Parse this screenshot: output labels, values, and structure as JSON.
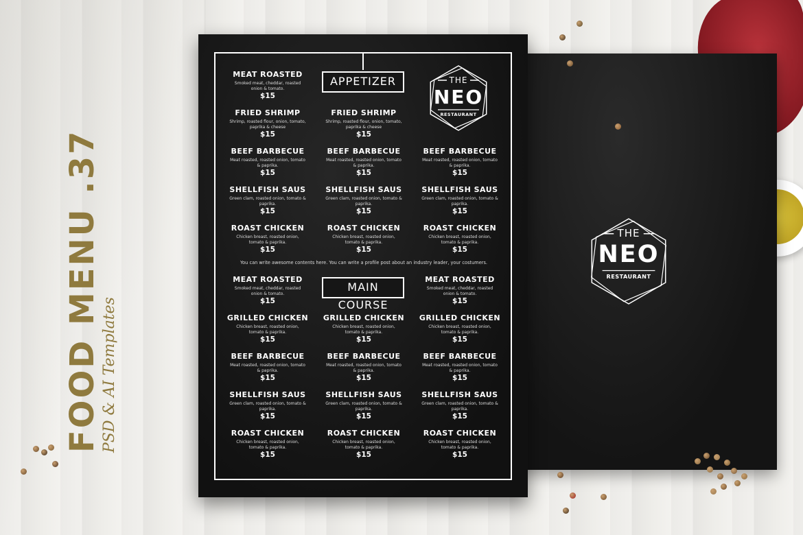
{
  "promo": {
    "title": "FOOD MENU .37",
    "subtitle": "PSD & AI Templates"
  },
  "colors": {
    "gold": "#8f7a3e",
    "board": "#141414",
    "ink": "#ffffff"
  },
  "logo": {
    "the": "THE",
    "name": "NEO",
    "tagline": "RESTAURANT"
  },
  "front": {
    "appetizer": {
      "heading": "APPETIZER",
      "rows": [
        [
          {
            "name": "MEAT ROASTED",
            "desc": "Smoked meat, cheddar, roasted onion & tomato.",
            "price": "$15"
          },
          null,
          null
        ],
        [
          {
            "name": "FRIED SHRIMP",
            "desc": "Shrimp, roasted flour, onion, tomato, paprika & cheese",
            "price": "$15"
          },
          {
            "name": "FRIED SHRIMP",
            "desc": "Shrimp, roasted flour, onion, tomato, paprika & cheese",
            "price": "$15"
          },
          null
        ],
        [
          {
            "name": "BEEF BARBECUE",
            "desc": "Meat roasted, roasted onion, tomato & paprika.",
            "price": "$15"
          },
          {
            "name": "BEEF BARBECUE",
            "desc": "Meat roasted, roasted onion, tomato & paprika.",
            "price": "$15"
          },
          {
            "name": "BEEF BARBECUE",
            "desc": "Meat roasted, roasted onion, tomato & paprika.",
            "price": "$15"
          }
        ],
        [
          {
            "name": "SHELLFISH SAUS",
            "desc": "Green clam, roasted onion, tomato & paprika.",
            "price": "$15"
          },
          {
            "name": "SHELLFISH SAUS",
            "desc": "Green clam, roasted onion, tomato & paprika.",
            "price": "$15"
          },
          {
            "name": "SHELLFISH SAUS",
            "desc": "Green clam, roasted onion, tomato & paprika.",
            "price": "$15"
          }
        ],
        [
          {
            "name": "ROAST CHICKEN",
            "desc": "Chicken breast, roasted onion, tomato & paprika.",
            "price": "$15"
          },
          {
            "name": "ROAST CHICKEN",
            "desc": "Chicken breast, roasted onion, tomato & paprika.",
            "price": "$15"
          },
          {
            "name": "ROAST CHICKEN",
            "desc": "Chicken breast, roasted onion, tomato & paprika.",
            "price": "$15"
          }
        ]
      ]
    },
    "note": "You can write awesome contents here. You can write a profile post about an industry leader, your costumers.",
    "main_course": {
      "heading": "MAIN COURSE",
      "rows": [
        [
          {
            "name": "MEAT ROASTED",
            "desc": "Smoked meat, cheddar, roasted onion & tomato.",
            "price": "$15"
          },
          null,
          {
            "name": "MEAT ROASTED",
            "desc": "Smoked meat, cheddar, roasted onion & tomato.",
            "price": "$15"
          }
        ],
        [
          {
            "name": "GRILLED CHICKEN",
            "desc": "Chicken breast, roasted onion, tomato & paprika.",
            "price": "$15"
          },
          {
            "name": "GRILLED CHICKEN",
            "desc": "Chicken breast, roasted onion, tomato & paprika.",
            "price": "$15"
          },
          {
            "name": "GRILLED CHICKEN",
            "desc": "Chicken breast, roasted onion, tomato & paprika.",
            "price": "$15"
          }
        ],
        [
          {
            "name": "BEEF BARBECUE",
            "desc": "Meat roasted, roasted onion, tomato & paprika.",
            "price": "$15"
          },
          {
            "name": "BEEF BARBECUE",
            "desc": "Meat roasted, roasted onion, tomato & paprika.",
            "price": "$15"
          },
          {
            "name": "BEEF BARBECUE",
            "desc": "Meat roasted, roasted onion, tomato & paprika.",
            "price": "$15"
          }
        ],
        [
          {
            "name": "SHELLFISH SAUS",
            "desc": "Green clam, roasted onion, tomato & paprika.",
            "price": "$15"
          },
          {
            "name": "SHELLFISH SAUS",
            "desc": "Green clam, roasted onion, tomato & paprika.",
            "price": "$15"
          },
          {
            "name": "SHELLFISH SAUS",
            "desc": "Green clam, roasted onion, tomato & paprika.",
            "price": "$15"
          }
        ],
        [
          {
            "name": "ROAST CHICKEN",
            "desc": "Chicken breast, roasted onion, tomato & paprika.",
            "price": "$15"
          },
          {
            "name": "ROAST CHICKEN",
            "desc": "Chicken breast, roasted onion, tomato & paprika.",
            "price": "$15"
          },
          {
            "name": "ROAST CHICKEN",
            "desc": "Chicken breast, roasted onion, tomato & paprika.",
            "price": "$15"
          }
        ]
      ]
    }
  }
}
